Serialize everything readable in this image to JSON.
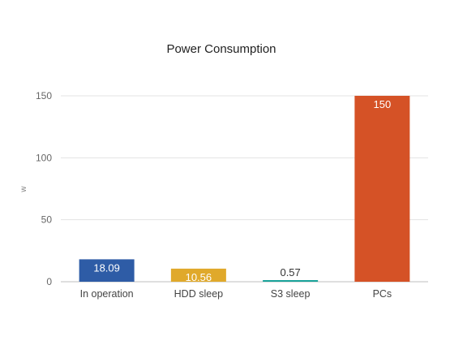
{
  "chart_data": {
    "type": "bar",
    "title": "Power Consumption",
    "xlabel": "",
    "ylabel": "w",
    "categories": [
      "In operation",
      "HDD sleep",
      "S3 sleep",
      "PCs"
    ],
    "values": [
      18.09,
      10.56,
      0.57,
      150
    ],
    "value_labels": [
      "18.09",
      "10.56",
      "0.57",
      "150"
    ],
    "colors": [
      "#2e5ca6",
      "#e0a92b",
      "#1aa39a",
      "#d55226"
    ],
    "label_colors": [
      "#ffffff",
      "#ffffff",
      "#333333",
      "#ffffff"
    ],
    "ylim": [
      0,
      150
    ],
    "yticks": [
      0,
      50,
      100,
      150
    ],
    "grid": true,
    "legend": "none"
  }
}
